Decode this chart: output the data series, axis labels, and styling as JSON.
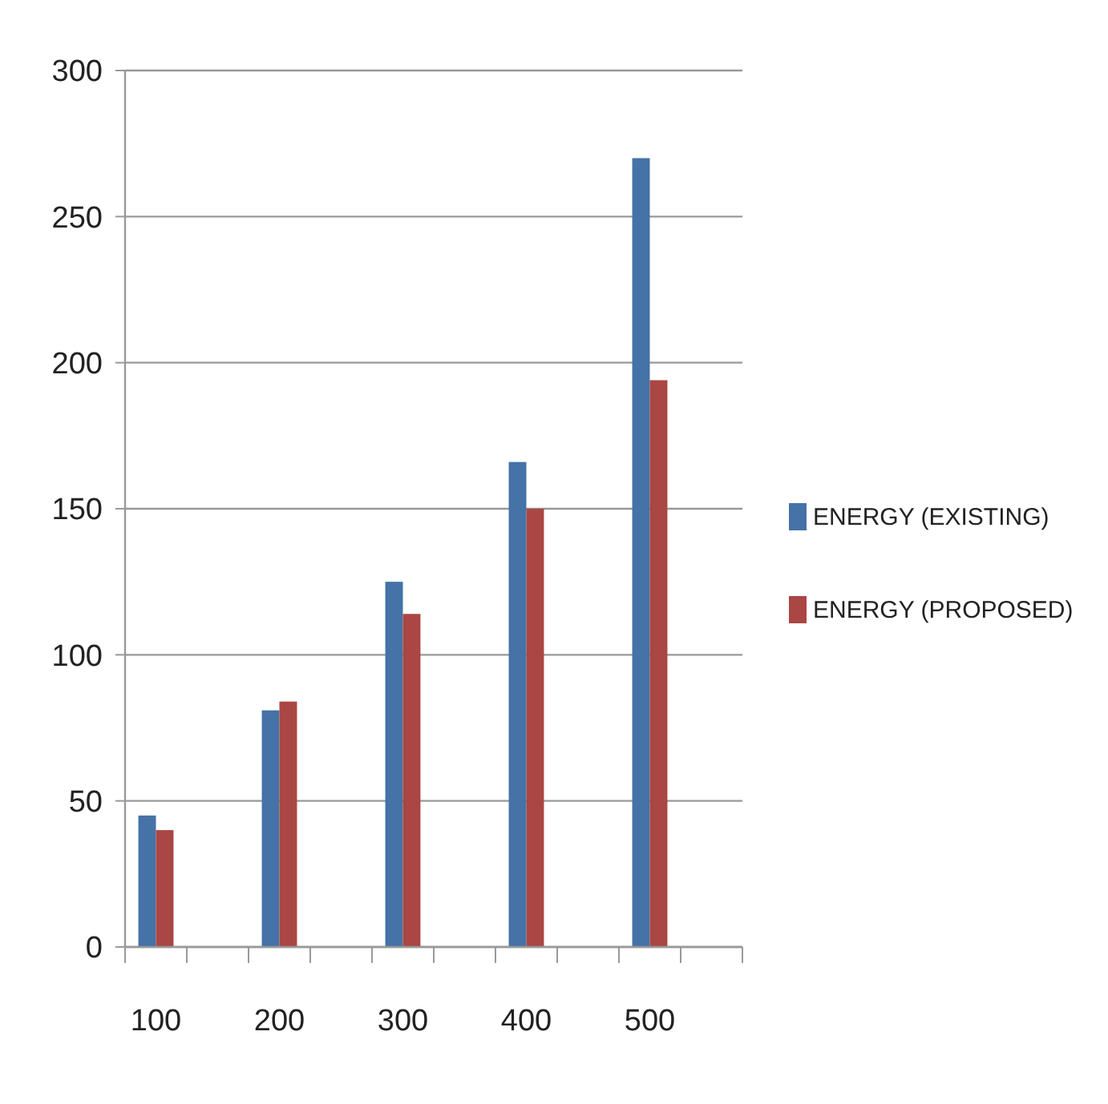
{
  "chart_data": {
    "type": "bar",
    "categories": [
      "100",
      null,
      "200",
      null,
      "300",
      null,
      "400",
      null,
      "500",
      null
    ],
    "series": [
      {
        "name": "ENERGY (EXISTING)",
        "color": "#4572a7",
        "values": [
          45,
          null,
          81,
          null,
          125,
          null,
          166,
          null,
          270,
          null
        ]
      },
      {
        "name": "ENERGY (PROPOSED)",
        "color": "#aa4643",
        "values": [
          40,
          null,
          84,
          null,
          114,
          null,
          150,
          null,
          194,
          null
        ]
      }
    ],
    "ylim": [
      0,
      300
    ],
    "yticks": [
      0,
      50,
      100,
      150,
      200,
      250,
      300
    ],
    "grid": "y",
    "legend": "right"
  }
}
